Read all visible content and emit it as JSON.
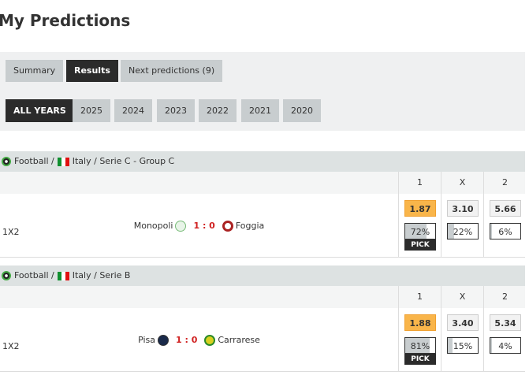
{
  "title": "My Predictions",
  "tabs": [
    {
      "label": "Summary",
      "active": false
    },
    {
      "label": "Results",
      "active": true
    },
    {
      "label": "Next predictions (9)",
      "active": false
    }
  ],
  "years": [
    {
      "label": "ALL YEARS",
      "active": true
    },
    {
      "label": "2025"
    },
    {
      "label": "2024"
    },
    {
      "label": "2023"
    },
    {
      "label": "2022"
    },
    {
      "label": "2021"
    },
    {
      "label": "2020"
    }
  ],
  "columns": [
    "1",
    "X",
    "2"
  ],
  "sections": [
    {
      "sport": "Football",
      "sep1": " /",
      "country": "Italy",
      "league": "/ Serie C - Group C",
      "market": "1X2",
      "home": "Monopoli",
      "score": "1 : 0",
      "away": "Foggia",
      "odds": [
        "1.87",
        "3.10",
        "5.66"
      ],
      "pcts": [
        "72%",
        "22%",
        "6%"
      ],
      "pct_values": [
        72,
        22,
        6
      ],
      "pick": "PICK",
      "pick_index": 0
    },
    {
      "sport": "Football",
      "sep1": " /",
      "country": "Italy",
      "league": "/ Serie B",
      "market": "1X2",
      "home": "Pisa",
      "score": "1 : 0",
      "away": "Carrarese",
      "odds": [
        "1.88",
        "3.40",
        "5.34"
      ],
      "pcts": [
        "81%",
        "15%",
        "4%"
      ],
      "pct_values": [
        81,
        15,
        4
      ],
      "pick": "PICK",
      "pick_index": 0
    }
  ],
  "colors": {
    "accent": "#f9b54a",
    "dark": "#2b2b2b",
    "score": "#d02020"
  }
}
